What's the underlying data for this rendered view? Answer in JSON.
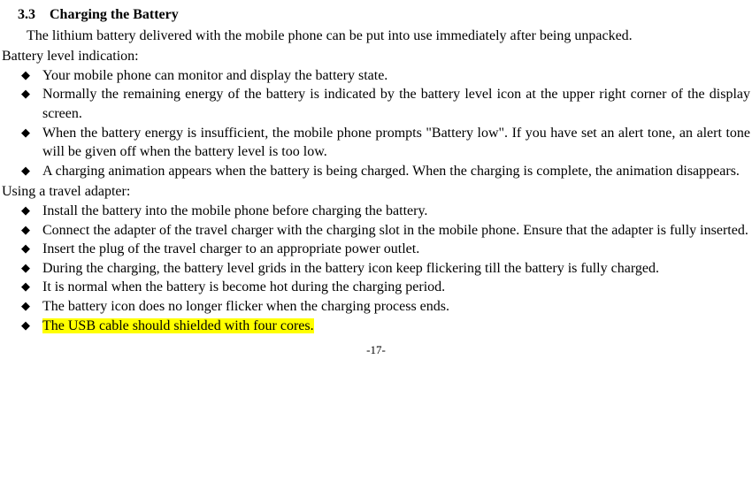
{
  "heading": {
    "number": "3.3",
    "title": "Charging the Battery"
  },
  "intro": "The lithium battery delivered with the mobile phone can be put into use immediately after being unpacked.",
  "subheading1": "Battery level indication:",
  "list1": [
    "Your mobile phone can monitor and display the battery state.",
    "Normally the remaining energy of the battery is indicated by the battery level icon at the upper right corner of the display screen.",
    "When the battery energy is insufficient, the mobile phone prompts \"Battery low\". If you have set an alert tone, an alert tone will be given off when the battery level is too low.",
    "A charging animation appears when the battery is being charged. When the charging is complete, the animation disappears."
  ],
  "subheading2": "Using a travel adapter:",
  "list2": [
    "Install the battery into the mobile phone before charging the battery.",
    "Connect the adapter of the travel charger with the charging slot in the mobile phone. Ensure that the adapter is fully inserted.",
    "Insert the plug of the travel charger to an appropriate power outlet.",
    "During the charging, the battery level grids in the battery icon keep flickering till the battery is fully charged.",
    "It is normal when the battery is become hot during the charging period.",
    "The battery icon does no longer flicker when the charging process ends."
  ],
  "highlighted": "The USB cable should shielded with four cores.",
  "pagenum": "-17-"
}
